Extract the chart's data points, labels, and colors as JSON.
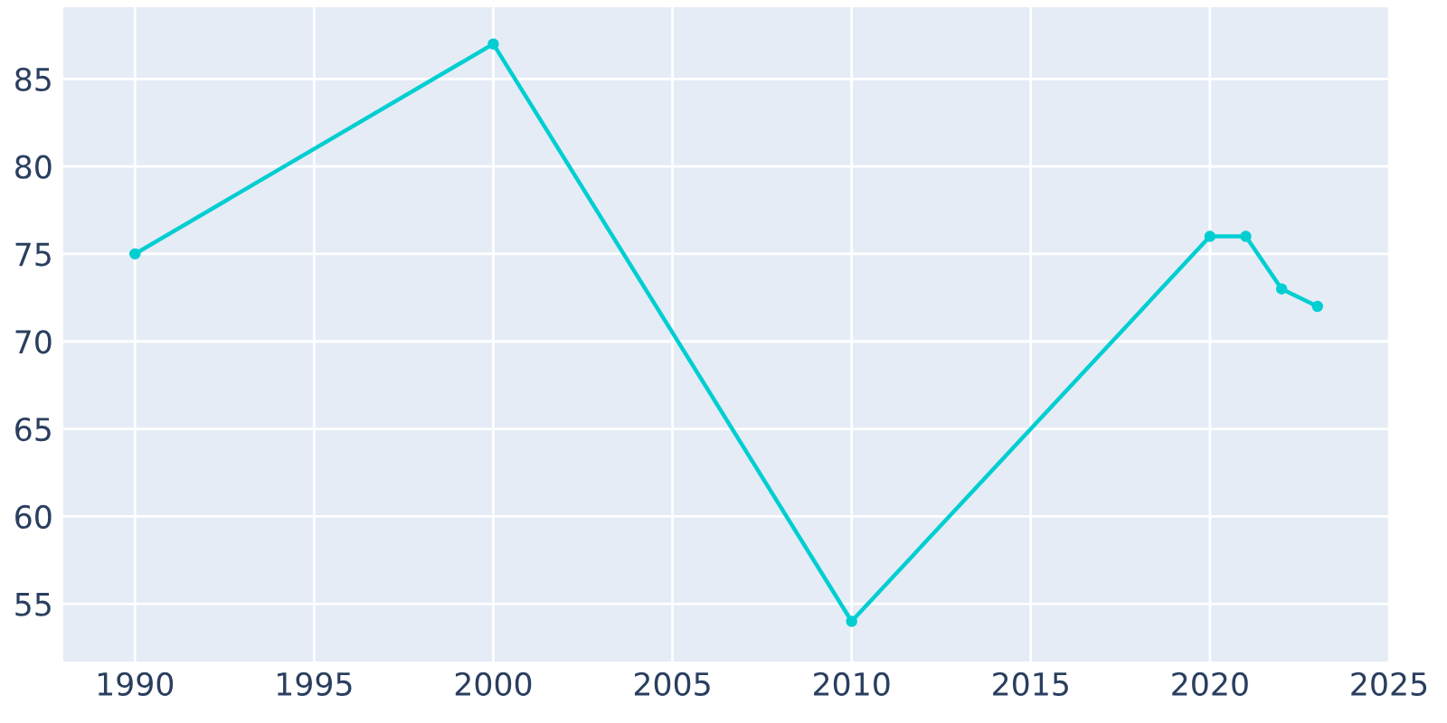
{
  "chart_data": {
    "type": "line",
    "x": [
      1990,
      2000,
      2010,
      2020,
      2021,
      2022,
      2023
    ],
    "series": [
      {
        "color": "#00ced1",
        "values": [
          75,
          87,
          54,
          76,
          76,
          73,
          72
        ]
      }
    ],
    "xlim": [
      1988,
      2025
    ],
    "xticks": [
      1990,
      1995,
      2000,
      2005,
      2010,
      2015,
      2020,
      2025
    ],
    "ylim": [
      51.7,
      89.1
    ],
    "yticks": [
      55,
      60,
      65,
      70,
      75,
      80,
      85
    ],
    "grid": true,
    "marker": "circle",
    "line_style": "solid"
  }
}
